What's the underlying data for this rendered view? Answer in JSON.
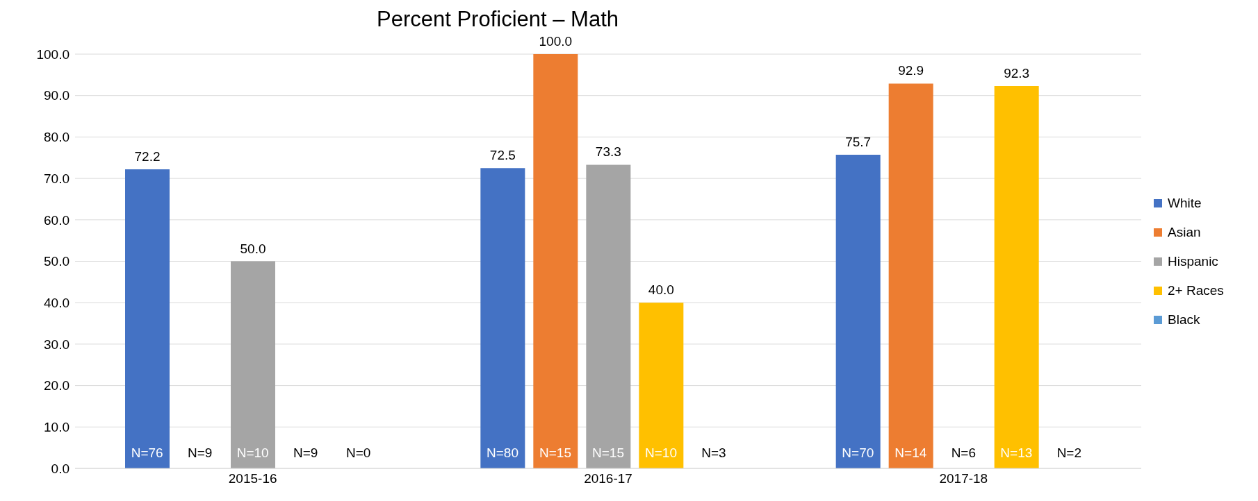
{
  "chart_data": {
    "type": "bar",
    "title": "Percent Proficient – Math",
    "categories": [
      "2015-16",
      "2016-17",
      "2017-18"
    ],
    "series": [
      {
        "name": "White",
        "color": "#4472c4",
        "values": [
          72.2,
          72.5,
          75.7
        ],
        "value_labels": [
          "72.2",
          "72.5",
          "75.7"
        ]
      },
      {
        "name": "Asian",
        "color": "#ed7d31",
        "values": [
          null,
          100,
          92.9
        ],
        "value_labels": [
          null,
          "100.0",
          "92.9"
        ]
      },
      {
        "name": "Hispanic",
        "color": "#a5a5a5",
        "values": [
          50,
          73.3,
          null
        ],
        "value_labels": [
          "50.0",
          "73.3",
          null
        ]
      },
      {
        "name": "2+ Races",
        "color": "#ffc000",
        "values": [
          null,
          40,
          92.3
        ],
        "value_labels": [
          null,
          "40.0",
          "92.3"
        ]
      },
      {
        "name": "Black",
        "color": "#5b9bd5",
        "values": [
          null,
          null,
          null
        ],
        "value_labels": [
          null,
          null,
          null
        ]
      }
    ],
    "ylim": [
      0,
      100
    ],
    "yticks": [
      {
        "value": 0,
        "label": "0.0"
      },
      {
        "value": 10,
        "label": "10.0"
      },
      {
        "value": 20,
        "label": "20.0"
      },
      {
        "value": 30,
        "label": "30.0"
      },
      {
        "value": 40,
        "label": "40.0"
      },
      {
        "value": 50,
        "label": "50.0"
      },
      {
        "value": 60,
        "label": "60.0"
      },
      {
        "value": 70,
        "label": "70.0"
      },
      {
        "value": 80,
        "label": "80.0"
      },
      {
        "value": 90,
        "label": "90.0"
      },
      {
        "value": 100,
        "label": "100.0"
      }
    ],
    "grid": "y",
    "legend": "right",
    "annotations": [
      "N=76",
      "N=9",
      "N=10",
      "N=9",
      "N=0",
      "N=80",
      "N=15",
      "N=15",
      "N=10",
      "N=3",
      "N=70",
      "N=14",
      "N=6",
      "N=13",
      "N=2"
    ]
  }
}
